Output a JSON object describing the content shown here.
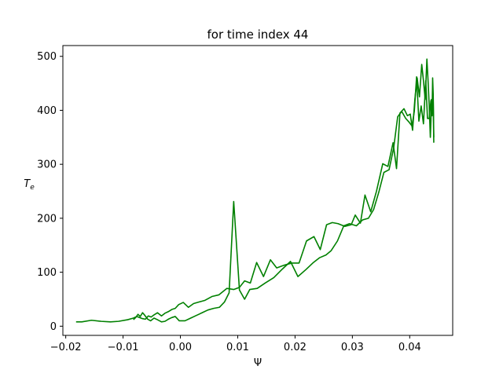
{
  "chart_data": {
    "type": "line",
    "title": "for time index 44",
    "xlabel": "Ψ",
    "ylabel": "T",
    "ylabel_sub": "e",
    "xlim": [
      -0.0205,
      0.0475
    ],
    "ylim": [
      -17,
      520
    ],
    "xticks": [
      -0.02,
      -0.01,
      0.0,
      0.01,
      0.02,
      0.03,
      0.04
    ],
    "xtick_labels": [
      "−0.02",
      "−0.01",
      "0.00",
      "0.01",
      "0.02",
      "0.03",
      "0.04"
    ],
    "yticks": [
      0,
      100,
      200,
      300,
      400,
      500
    ],
    "ytick_labels": [
      "0",
      "100",
      "200",
      "300",
      "400",
      "500"
    ],
    "grid": false,
    "line_color": "#008000",
    "series": [
      {
        "x": [
          -0.0182,
          -0.0172,
          -0.0155,
          -0.0138,
          -0.0122,
          -0.0108,
          -0.0092,
          -0.0082,
          -0.0076,
          -0.0071,
          -0.0066,
          -0.0061,
          -0.0056,
          -0.0051,
          -0.0046,
          -0.004,
          -0.0033,
          -0.0027,
          -0.0021,
          -0.0015,
          -0.0009,
          -0.0003,
          0.0005,
          0.0014,
          0.0023,
          0.0033,
          0.0043,
          0.0055,
          0.0067,
          0.0081,
          0.0093,
          0.0103,
          0.0112,
          0.0122,
          0.0133,
          0.0145,
          0.0157,
          0.0168,
          0.0181,
          0.0194,
          0.0207,
          0.022,
          0.0233,
          0.0244,
          0.0255,
          0.0265,
          0.0275,
          0.0287,
          0.0298,
          0.0305,
          0.0314,
          0.0322,
          0.0332,
          0.0342,
          0.0353,
          0.0362,
          0.0371,
          0.0377,
          0.0383,
          0.039,
          0.0396,
          0.0401,
          0.0405,
          0.0409,
          0.0413,
          0.0417,
          0.0421,
          0.0424,
          0.0427,
          0.043,
          0.0432,
          0.0434,
          0.0436,
          0.0437,
          0.0438,
          0.0439,
          0.044,
          0.0441,
          0.0442
        ],
        "y": [
          8,
          8,
          11,
          9,
          8,
          9,
          12,
          15,
          18,
          16,
          14,
          13,
          19,
          17,
          21,
          25,
          19,
          24,
          27,
          31,
          33,
          40,
          44,
          35,
          42,
          45,
          48,
          55,
          58,
          70,
          68,
          72,
          84,
          80,
          118,
          92,
          123,
          108,
          113,
          117,
          117,
          158,
          166,
          142,
          188,
          192,
          190,
          185,
          188,
          206,
          191,
          243,
          212,
          250,
          301,
          296,
          340,
          292,
          395,
          403,
          390,
          393,
          363,
          420,
          460,
          425,
          485,
          455,
          420,
          495,
          455,
          410,
          350,
          380,
          420,
          390,
          460,
          430,
          350
        ]
      },
      {
        "x": [
          -0.0082,
          -0.0078,
          -0.0074,
          -0.007,
          -0.0066,
          -0.0062,
          -0.0057,
          -0.0052,
          -0.0046,
          -0.004,
          -0.0033,
          -0.0027,
          -0.0021,
          -0.0015,
          -0.0009,
          -0.0002,
          0.0008,
          0.0018,
          0.0028,
          0.0038,
          0.0048,
          0.0058,
          0.0068,
          0.0077,
          0.0085,
          0.0093,
          0.0103,
          0.0112,
          0.0121,
          0.0134,
          0.0148,
          0.0163,
          0.0178,
          0.0192,
          0.0205,
          0.0219,
          0.0232,
          0.0243,
          0.0254,
          0.0263,
          0.0274,
          0.0285,
          0.0295,
          0.0307,
          0.0318,
          0.0328,
          0.0337,
          0.0346,
          0.0355,
          0.0364,
          0.0372,
          0.0379,
          0.0386,
          0.0393,
          0.0399,
          0.0404,
          0.0408,
          0.0412,
          0.0416,
          0.042,
          0.0424,
          0.0428,
          0.0431,
          0.0434,
          0.0437,
          0.0439,
          0.0441,
          0.0442
        ],
        "y": [
          12,
          16,
          22,
          18,
          25,
          20,
          13,
          10,
          15,
          12,
          8,
          9,
          13,
          16,
          18,
          10,
          10,
          15,
          20,
          25,
          30,
          33,
          35,
          45,
          62,
          231,
          67,
          50,
          68,
          70,
          80,
          90,
          106,
          120,
          92,
          105,
          118,
          127,
          132,
          140,
          158,
          186,
          190,
          186,
          197,
          200,
          216,
          248,
          285,
          290,
          330,
          388,
          398,
          385,
          378,
          371,
          398,
          462,
          380,
          408,
          375,
          455,
          385,
          385,
          418,
          393,
          420,
          340
        ]
      }
    ]
  }
}
